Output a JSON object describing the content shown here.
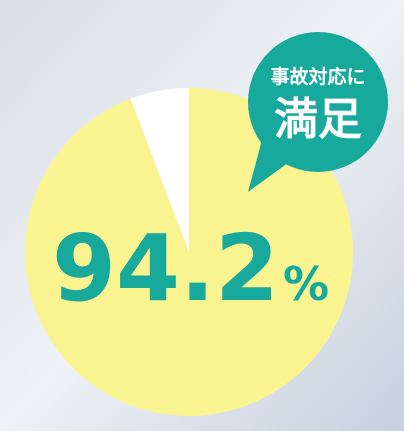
{
  "chart_data": {
    "type": "pie",
    "categories": [
      null,
      null
    ],
    "values": [
      94.2,
      5.8
    ],
    "colors": [
      "#faf490",
      "#ffffff"
    ],
    "unit": "%",
    "annotation": {
      "lines": [
        "事故対応に",
        "満足"
      ],
      "color": "#17a99b"
    }
  }
}
